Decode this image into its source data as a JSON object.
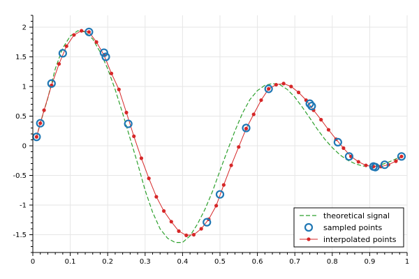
{
  "chart_data": {
    "type": "line",
    "title": "",
    "xlabel": "",
    "ylabel": "",
    "xlim": [
      0,
      1
    ],
    "ylim": [
      -1.8,
      2.2
    ],
    "grid": true,
    "legend_position": "bottom-right",
    "x_ticks": [
      0,
      0.1,
      0.2,
      0.3,
      0.4,
      0.5,
      0.6,
      0.7,
      0.8,
      0.9,
      1
    ],
    "x_tick_labels": [
      "0",
      "0.1",
      "0.2",
      "0.3",
      "0.4",
      "0.5",
      "0.6",
      "0.7",
      "0.8",
      "0.9",
      "1"
    ],
    "y_ticks": [
      -1.5,
      -1,
      -0.5,
      0,
      0.5,
      1,
      1.5,
      2
    ],
    "y_tick_labels": [
      "-1.5",
      "-1",
      "-0.5",
      "0",
      "0.5",
      "1",
      "1.5",
      "2"
    ],
    "series": [
      {
        "name": "theoretical signal",
        "style": "dashed-line",
        "color": "#2ca02c",
        "x": [
          0.01,
          0.02,
          0.04,
          0.06,
          0.08,
          0.1,
          0.12,
          0.14,
          0.16,
          0.18,
          0.2,
          0.22,
          0.24,
          0.26,
          0.28,
          0.3,
          0.32,
          0.34,
          0.36,
          0.38,
          0.4,
          0.42,
          0.44,
          0.46,
          0.48,
          0.5,
          0.52,
          0.54,
          0.56,
          0.58,
          0.6,
          0.62,
          0.64,
          0.66,
          0.68,
          0.7,
          0.72,
          0.74,
          0.76,
          0.78,
          0.8,
          0.82,
          0.84,
          0.86,
          0.88,
          0.9,
          0.92,
          0.94,
          0.96,
          0.98
        ],
        "y": [
          0.15,
          0.38,
          0.8,
          1.3,
          1.65,
          1.85,
          1.94,
          1.92,
          1.8,
          1.58,
          1.3,
          0.95,
          0.55,
          0.12,
          -0.3,
          -0.75,
          -1.12,
          -1.4,
          -1.56,
          -1.63,
          -1.63,
          -1.52,
          -1.32,
          -1.07,
          -0.77,
          -0.42,
          -0.08,
          0.25,
          0.55,
          0.78,
          0.93,
          1.02,
          1.05,
          1.03,
          0.95,
          0.82,
          0.65,
          0.47,
          0.28,
          0.11,
          -0.03,
          -0.15,
          -0.24,
          -0.3,
          -0.34,
          -0.35,
          -0.34,
          -0.3,
          -0.25,
          -0.19
        ]
      },
      {
        "name": "sampled points",
        "style": "open-circles",
        "color": "#1f77b4",
        "x": [
          0.01,
          0.02,
          0.05,
          0.08,
          0.15,
          0.19,
          0.195,
          0.255,
          0.465,
          0.5,
          0.57,
          0.63,
          0.74,
          0.745,
          0.815,
          0.845,
          0.91,
          0.915,
          0.94,
          0.985
        ],
        "y": [
          0.15,
          0.38,
          1.05,
          1.56,
          1.92,
          1.57,
          1.5,
          0.37,
          -1.29,
          -0.82,
          0.3,
          0.96,
          0.71,
          0.67,
          0.06,
          -0.18,
          -0.35,
          -0.36,
          -0.32,
          -0.18
        ]
      },
      {
        "name": "interpolated points",
        "style": "line-with-dots",
        "color": "#d62728",
        "x": [
          0.01,
          0.02,
          0.03,
          0.05,
          0.07,
          0.09,
          0.11,
          0.13,
          0.15,
          0.17,
          0.19,
          0.21,
          0.23,
          0.25,
          0.27,
          0.29,
          0.31,
          0.33,
          0.35,
          0.37,
          0.39,
          0.41,
          0.43,
          0.45,
          0.47,
          0.49,
          0.51,
          0.53,
          0.55,
          0.57,
          0.59,
          0.61,
          0.63,
          0.65,
          0.67,
          0.69,
          0.71,
          0.73,
          0.75,
          0.77,
          0.79,
          0.81,
          0.83,
          0.85,
          0.87,
          0.89,
          0.91,
          0.93,
          0.95,
          0.97,
          0.985
        ],
        "y": [
          0.15,
          0.38,
          0.6,
          1.02,
          1.38,
          1.68,
          1.87,
          1.94,
          1.92,
          1.75,
          1.53,
          1.22,
          0.95,
          0.56,
          0.16,
          -0.21,
          -0.55,
          -0.86,
          -1.1,
          -1.28,
          -1.44,
          -1.51,
          -1.5,
          -1.4,
          -1.24,
          -1.01,
          -0.66,
          -0.33,
          -0.02,
          0.29,
          0.53,
          0.77,
          0.96,
          1.03,
          1.05,
          1.0,
          0.9,
          0.77,
          0.6,
          0.44,
          0.27,
          0.11,
          -0.04,
          -0.18,
          -0.27,
          -0.33,
          -0.35,
          -0.35,
          -0.32,
          -0.26,
          -0.18
        ]
      }
    ]
  }
}
